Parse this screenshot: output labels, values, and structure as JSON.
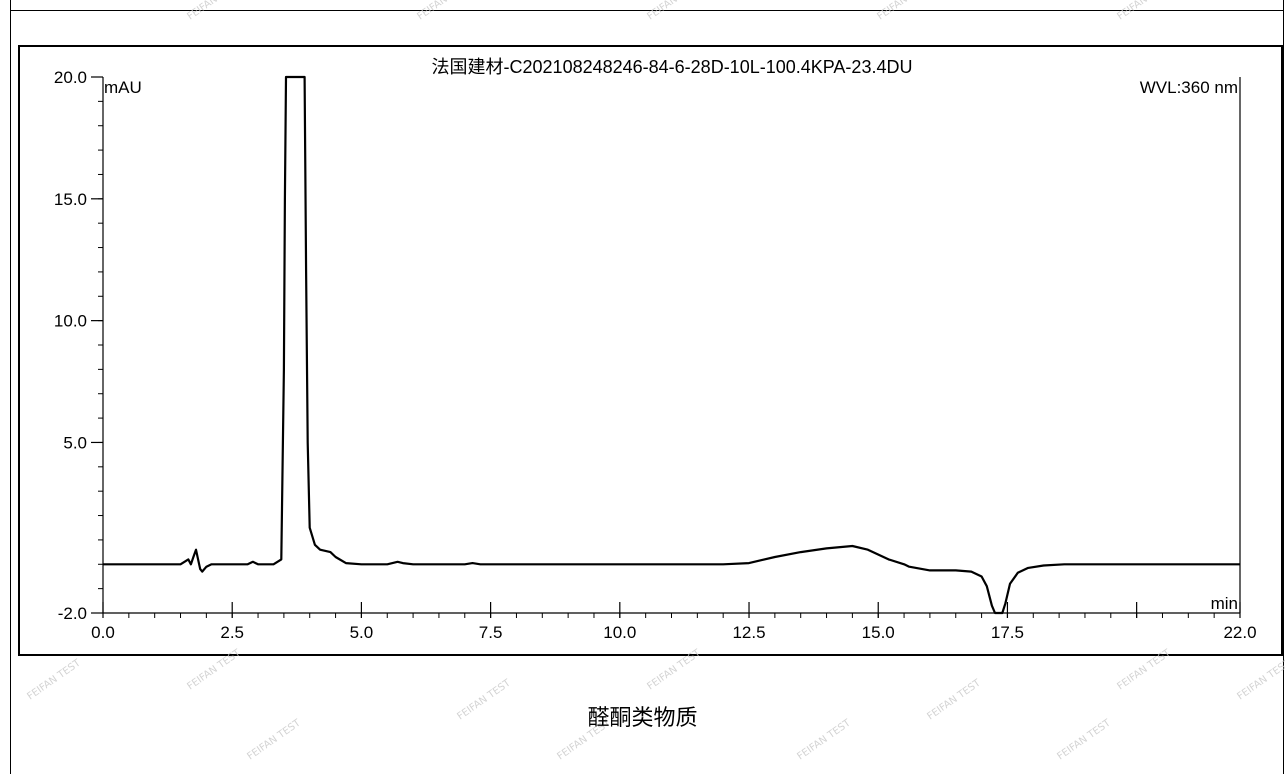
{
  "chart_data": {
    "type": "line",
    "title": "法国建材-C202108248246-84-6-28D-10L-100.4KPA-23.4DU",
    "ylabel": "mAU",
    "xlabel": "min",
    "annotation": "WVL:360 nm",
    "xlim": [
      0.0,
      22.0
    ],
    "ylim": [
      -2.0,
      20.0
    ],
    "x_ticks": [
      "0.0",
      "2.5",
      "5.0",
      "7.5",
      "10.0",
      "12.5",
      "15.0",
      "17.5",
      "22.0"
    ],
    "x_tick_values": [
      0.0,
      2.5,
      5.0,
      7.5,
      10.0,
      12.5,
      15.0,
      17.5,
      22.0
    ],
    "y_ticks": [
      "-2.0",
      "5.0",
      "10.0",
      "15.0",
      "20.0"
    ],
    "y_tick_values": [
      -2.0,
      5.0,
      10.0,
      15.0,
      20.0
    ],
    "grid": false,
    "series": [
      {
        "color": "#000000",
        "x": [
          0.0,
          1.5,
          1.65,
          1.7,
          1.75,
          1.8,
          1.85,
          1.88,
          1.92,
          2.0,
          2.1,
          2.3,
          2.8,
          2.9,
          3.0,
          3.3,
          3.45,
          3.5,
          3.52,
          3.54,
          3.9,
          3.93,
          3.96,
          4.0,
          4.1,
          4.2,
          4.4,
          4.5,
          4.7,
          5.0,
          5.5,
          5.7,
          5.8,
          6.0,
          6.5,
          7.0,
          7.15,
          7.3,
          8.0,
          10.0,
          12.0,
          12.5,
          13.0,
          13.5,
          14.0,
          14.5,
          14.8,
          15.2,
          15.5,
          15.6,
          16.0,
          16.5,
          16.8,
          17.0,
          17.1,
          17.2,
          17.26,
          17.4,
          17.46,
          17.55,
          17.7,
          17.9,
          18.2,
          18.6,
          19.0,
          20.0,
          21.0,
          22.0
        ],
        "y": [
          0.0,
          0.0,
          0.2,
          0.0,
          0.3,
          0.6,
          0.1,
          -0.2,
          -0.3,
          -0.1,
          0.0,
          0.0,
          0.0,
          0.1,
          0.0,
          0.0,
          0.2,
          8.0,
          15.0,
          20.0,
          20.0,
          12.0,
          5.0,
          1.5,
          0.8,
          0.6,
          0.5,
          0.3,
          0.05,
          0.0,
          0.0,
          0.1,
          0.05,
          0.0,
          0.0,
          0.0,
          0.05,
          0.0,
          0.0,
          0.0,
          0.0,
          0.05,
          0.3,
          0.5,
          0.65,
          0.75,
          0.6,
          0.2,
          0.0,
          -0.1,
          -0.25,
          -0.25,
          -0.3,
          -0.5,
          -0.9,
          -1.7,
          -2.0,
          -2.0,
          -1.6,
          -0.8,
          -0.35,
          -0.15,
          -0.05,
          0.0,
          0.0,
          0.0,
          0.0,
          0.0
        ]
      }
    ]
  },
  "caption": "醛酮类物质",
  "watermark": "FEIFAN TEST"
}
